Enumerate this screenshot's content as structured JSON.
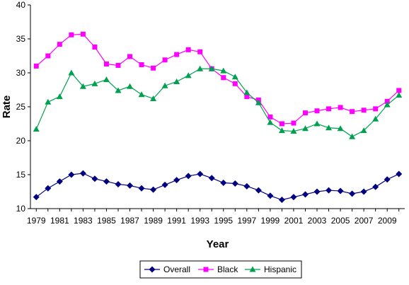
{
  "chart_data": {
    "type": "line",
    "title": "",
    "xlabel": "Year",
    "ylabel": "Rate",
    "ylim": [
      10,
      40
    ],
    "yticks": [
      10,
      15,
      20,
      25,
      30,
      35,
      40
    ],
    "x": [
      1979,
      1980,
      1981,
      1982,
      1983,
      1984,
      1985,
      1986,
      1987,
      1988,
      1989,
      1990,
      1991,
      1992,
      1993,
      1994,
      1995,
      1996,
      1997,
      1998,
      1999,
      2000,
      2001,
      2002,
      2003,
      2004,
      2005,
      2006,
      2007,
      2008,
      2009,
      2010
    ],
    "xtick_labels": [
      "1979",
      "1981",
      "1983",
      "1985",
      "1987",
      "1989",
      "1991",
      "1993",
      "1995",
      "1997",
      "1999",
      "2001",
      "2003",
      "2005",
      "2007",
      "2009"
    ],
    "grid": false,
    "legend_position": "bottom",
    "series": [
      {
        "name": "Overall",
        "color": "#000080",
        "marker": "diamond",
        "values": [
          11.7,
          13.0,
          14.0,
          15.0,
          15.2,
          14.4,
          14.0,
          13.6,
          13.4,
          13.0,
          12.8,
          13.5,
          14.2,
          14.8,
          15.1,
          14.5,
          13.8,
          13.7,
          13.3,
          12.7,
          11.9,
          11.3,
          11.7,
          12.1,
          12.5,
          12.7,
          12.6,
          12.2,
          12.5,
          13.2,
          14.3,
          15.1
        ]
      },
      {
        "name": "Black",
        "color": "#ff00ff",
        "marker": "square",
        "values": [
          31.0,
          32.5,
          34.2,
          35.6,
          35.7,
          33.8,
          31.3,
          31.1,
          32.4,
          31.2,
          30.7,
          31.9,
          32.7,
          33.4,
          33.1,
          30.6,
          29.3,
          28.4,
          26.5,
          26.0,
          23.5,
          22.5,
          22.6,
          24.1,
          24.4,
          24.7,
          24.9,
          24.3,
          24.5,
          24.7,
          25.8,
          27.4
        ]
      },
      {
        "name": "Hispanic",
        "color": "#00a050",
        "marker": "triangle",
        "values": [
          21.7,
          25.7,
          26.5,
          30.0,
          28.0,
          28.4,
          29.0,
          27.4,
          28.0,
          26.8,
          26.2,
          28.1,
          28.7,
          29.6,
          30.6,
          30.6,
          30.3,
          29.4,
          27.1,
          25.6,
          22.7,
          21.5,
          21.4,
          21.8,
          22.5,
          21.9,
          21.8,
          20.6,
          21.5,
          23.2,
          25.3,
          26.7
        ]
      }
    ]
  }
}
